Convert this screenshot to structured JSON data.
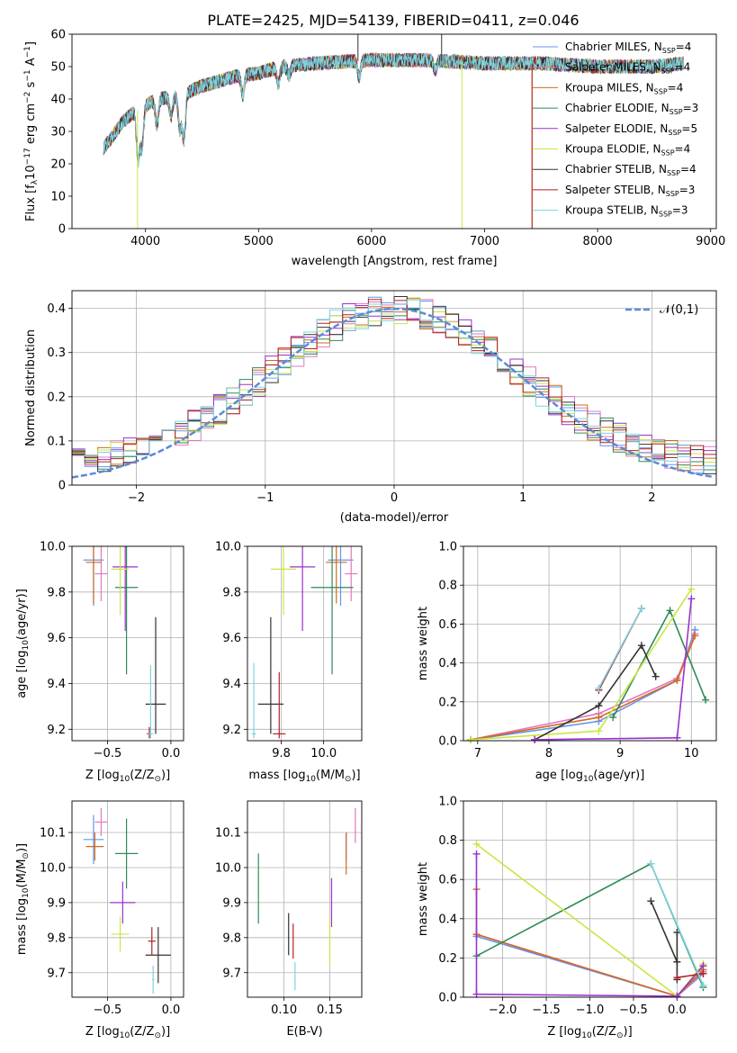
{
  "title": "PLATE=2425, MJD=54139, FIBERID=0411, z=0.046",
  "series_names": [
    "Chabrier MILES",
    "Salpeter MILES",
    "Kroupa MILES",
    "Chabrier ELODIE",
    "Salpeter ELODIE",
    "Kroupa ELODIE",
    "Chabrier STELIB",
    "Salpeter STELIB",
    "Kroupa STELIB"
  ],
  "legend_labels": [
    "Chabrier MILES, N",
    "Salpeter MILES, N",
    "Kroupa MILES, N",
    "Chabrier ELODIE, N",
    "Salpeter ELODIE, N",
    "Kroupa ELODIE, N",
    "Chabrier STELIB, N",
    "Salpeter STELIB, N",
    "Kroupa STELIB, N"
  ],
  "legend_sub": "SSP",
  "legend_nssp": [
    "=4",
    "=4",
    "=4",
    "=3",
    "=5",
    "=4",
    "=4",
    "=3",
    "=3"
  ],
  "colors": [
    "#6495ed",
    "#e377c2",
    "#d2691e",
    "#2e8b57",
    "#9932cc",
    "#c8e645",
    "#333333",
    "#b22222",
    "#7fd3e0"
  ],
  "chart_data": [
    {
      "type": "line",
      "title": "PLATE=2425, MJD=54139, FIBERID=0411, z=0.046",
      "xlabel": "wavelength [Angstrom, rest frame]",
      "ylabel_parts": [
        "Flux [f",
        "λ",
        "10",
        "−17",
        " erg cm",
        "−2",
        " s",
        "−1",
        " A",
        "−1",
        "]"
      ],
      "xlim": [
        3350,
        9050
      ],
      "ylim": [
        0,
        60
      ],
      "xticks": [
        4000,
        5000,
        6000,
        7000,
        8000,
        9000
      ],
      "yticks": [
        0,
        10,
        20,
        30,
        40,
        50,
        60
      ],
      "wavelength_range": [
        3630,
        8760
      ],
      "continuum": [
        [
          3630,
          25
        ],
        [
          3700,
          28
        ],
        [
          3800,
          33
        ],
        [
          3900,
          36
        ],
        [
          4000,
          38
        ],
        [
          4100,
          40
        ],
        [
          4300,
          41
        ],
        [
          4500,
          44
        ],
        [
          4800,
          47
        ],
        [
          5000,
          48
        ],
        [
          5200,
          50
        ],
        [
          5500,
          51
        ],
        [
          6000,
          52
        ],
        [
          6500,
          52
        ],
        [
          7000,
          51
        ],
        [
          7500,
          51
        ],
        [
          8000,
          50
        ],
        [
          8500,
          50
        ],
        [
          8760,
          51
        ]
      ],
      "absorption_lines": [
        [
          3934,
          15
        ],
        [
          3969,
          12
        ],
        [
          4101,
          8
        ],
        [
          4227,
          6
        ],
        [
          4304,
          10
        ],
        [
          4340,
          14
        ],
        [
          4861,
          6
        ],
        [
          5175,
          5
        ],
        [
          5270,
          3
        ],
        [
          5890,
          5
        ],
        [
          6563,
          3
        ]
      ],
      "spikes": [
        [
          3930,
          0,
          "#c8e645"
        ],
        [
          6800,
          0,
          "#c8e645"
        ],
        [
          7420,
          0,
          "#d2691e"
        ],
        [
          7420,
          0,
          "#b22222"
        ],
        [
          5880,
          60,
          "#333333"
        ],
        [
          6620,
          60,
          "#333333"
        ]
      ]
    },
    {
      "type": "histogram",
      "xlabel": "(data-model)/error",
      "ylabel": "Normed distribution",
      "xlim": [
        -2.5,
        2.5
      ],
      "ylim": [
        0,
        0.44
      ],
      "xticks": [
        -2,
        -1,
        0,
        1,
        2
      ],
      "yticks": [
        0.0,
        0.1,
        0.2,
        0.3,
        0.4
      ],
      "bin_width": 0.1,
      "normal_label": "𝒩(0,1)",
      "normal_color": "#5b8bd6"
    },
    {
      "type": "errorbar",
      "xlabel_parts": [
        "Z [log",
        "10",
        "(Z/Z",
        "⊙",
        ")]"
      ],
      "ylabel_parts": [
        "age  [log",
        "10",
        "(age/yr)]"
      ],
      "xlim": [
        -0.78,
        0.1
      ],
      "ylim": [
        9.15,
        10.0
      ],
      "xticks": [
        -0.5,
        0.0
      ],
      "yticks": [
        9.2,
        9.4,
        9.6,
        9.8,
        10.0
      ],
      "points": [
        {
          "x": -0.61,
          "y": 9.94,
          "xerr": 0.08,
          "yerr_lo": 0.2,
          "yerr_hi": 0.06
        },
        {
          "x": -0.55,
          "y": 9.88,
          "xerr": 0.05,
          "yerr_lo": 0.12,
          "yerr_hi": 0.12
        },
        {
          "x": -0.61,
          "y": 9.93,
          "xerr": 0.06,
          "yerr_lo": 0.18,
          "yerr_hi": 0.07
        },
        {
          "x": -0.35,
          "y": 9.82,
          "xerr": 0.09,
          "yerr_lo": 0.38,
          "yerr_hi": 0.18
        },
        {
          "x": -0.36,
          "y": 9.91,
          "xerr": 0.1,
          "yerr_lo": 0.28,
          "yerr_hi": 0.09
        },
        {
          "x": -0.4,
          "y": 9.9,
          "xerr": 0.07,
          "yerr_lo": 0.2,
          "yerr_hi": 0.1
        },
        {
          "x": -0.12,
          "y": 9.31,
          "xerr": 0.08,
          "yerr_lo": 0.13,
          "yerr_hi": 0.38
        },
        {
          "x": -0.17,
          "y": 9.18,
          "xerr": 0.02,
          "yerr_lo": 0.02,
          "yerr_hi": 0.03
        },
        {
          "x": -0.16,
          "y": 9.18,
          "xerr": 0.02,
          "yerr_lo": 0.02,
          "yerr_hi": 0.3
        }
      ]
    },
    {
      "type": "errorbar",
      "xlabel_parts": [
        "mass [log",
        "10",
        "(M/M",
        "⊙",
        ")]"
      ],
      "xlim": [
        9.64,
        10.18
      ],
      "ylim": [
        9.15,
        10.0
      ],
      "xticks": [
        9.8,
        10.0
      ],
      "yticks": [
        9.2,
        9.4,
        9.6,
        9.8,
        10.0
      ],
      "points": [
        {
          "x": 10.08,
          "y": 9.94,
          "xerr": 0.06,
          "yerr_lo": 0.2,
          "yerr_hi": 0.06
        },
        {
          "x": 10.13,
          "y": 9.88,
          "xerr": 0.03,
          "yerr_lo": 0.12,
          "yerr_hi": 0.12
        },
        {
          "x": 10.06,
          "y": 9.93,
          "xerr": 0.05,
          "yerr_lo": 0.18,
          "yerr_hi": 0.07
        },
        {
          "x": 10.04,
          "y": 9.82,
          "xerr": 0.1,
          "yerr_lo": 0.38,
          "yerr_hi": 0.18
        },
        {
          "x": 9.9,
          "y": 9.91,
          "xerr": 0.06,
          "yerr_lo": 0.28,
          "yerr_hi": 0.09
        },
        {
          "x": 9.81,
          "y": 9.9,
          "xerr": 0.06,
          "yerr_lo": 0.2,
          "yerr_hi": 0.1
        },
        {
          "x": 9.75,
          "y": 9.31,
          "xerr": 0.06,
          "yerr_lo": 0.13,
          "yerr_hi": 0.38
        },
        {
          "x": 9.79,
          "y": 9.18,
          "xerr": 0.03,
          "yerr_lo": 0.02,
          "yerr_hi": 0.27
        },
        {
          "x": 9.67,
          "y": 9.18,
          "xerr": 0.01,
          "yerr_lo": 0.02,
          "yerr_hi": 0.31
        }
      ]
    },
    {
      "type": "line",
      "xlabel_parts": [
        "age  [log",
        "10",
        "(age/yr)]"
      ],
      "ylabel": "mass weight",
      "xlim": [
        6.8,
        10.35
      ],
      "ylim": [
        0,
        1.0
      ],
      "xticks": [
        7,
        8,
        9,
        10
      ],
      "yticks": [
        0.0,
        0.2,
        0.4,
        0.6,
        0.8,
        1.0
      ],
      "series": [
        {
          "x": [
            6.9,
            8.7,
            9.8,
            10.05
          ],
          "y": [
            0.005,
            0.1,
            0.31,
            0.57
          ]
        },
        {
          "x": [
            6.9,
            8.7,
            9.8,
            10.05
          ],
          "y": [
            0.005,
            0.14,
            0.32,
            0.55
          ]
        },
        {
          "x": [
            6.9,
            8.7,
            9.8,
            10.05
          ],
          "y": [
            0.005,
            0.12,
            0.31,
            0.54
          ]
        },
        {
          "x": [
            8.9,
            9.7,
            10.2
          ],
          "y": [
            0.12,
            0.67,
            0.21
          ]
        },
        {
          "x": [
            7.8,
            9.8,
            10.0
          ],
          "y": [
            0.005,
            0.015,
            0.73
          ]
        },
        {
          "x": [
            6.9,
            8.7,
            10.0
          ],
          "y": [
            0.005,
            0.05,
            0.78
          ]
        },
        {
          "x": [
            7.8,
            8.7,
            9.3,
            9.5
          ],
          "y": [
            0.005,
            0.18,
            0.49,
            0.33
          ]
        },
        {
          "x": [
            8.7,
            9.3
          ],
          "y": [
            0.26,
            0.68
          ]
        },
        {
          "x": [
            8.7,
            9.3
          ],
          "y": [
            0.27,
            0.68
          ]
        }
      ]
    },
    {
      "type": "errorbar",
      "xlabel_parts": [
        "Z [log",
        "10",
        "(Z/Z",
        "⊙",
        ")]"
      ],
      "ylabel_parts": [
        "mass [log",
        "10",
        "(M/M",
        "⊙",
        ")]"
      ],
      "xlim": [
        -0.78,
        0.1
      ],
      "ylim": [
        9.63,
        10.19
      ],
      "xticks": [
        -0.5,
        0.0
      ],
      "yticks": [
        9.7,
        9.8,
        9.9,
        10.0,
        10.1
      ],
      "points": [
        {
          "x": -0.61,
          "y": 10.08,
          "xerr": 0.08,
          "yerr": 0.07
        },
        {
          "x": -0.55,
          "y": 10.13,
          "xerr": 0.05,
          "yerr": 0.04
        },
        {
          "x": -0.6,
          "y": 10.06,
          "xerr": 0.07,
          "yerr": 0.04
        },
        {
          "x": -0.35,
          "y": 10.04,
          "xerr": 0.09,
          "yerr": 0.1
        },
        {
          "x": -0.38,
          "y": 9.9,
          "xerr": 0.1,
          "yerr": 0.06
        },
        {
          "x": -0.4,
          "y": 9.81,
          "xerr": 0.07,
          "yerr": 0.05
        },
        {
          "x": -0.1,
          "y": 9.75,
          "xerr": 0.1,
          "yerr": 0.08
        },
        {
          "x": -0.15,
          "y": 9.79,
          "xerr": 0.03,
          "yerr": 0.04
        },
        {
          "x": -0.14,
          "y": 9.68,
          "xerr": 0.01,
          "yerr": 0.04
        }
      ]
    },
    {
      "type": "errorbar",
      "xlabel": "E(B-V)",
      "xlim": [
        0.06,
        0.185
      ],
      "ylim": [
        9.63,
        10.19
      ],
      "xticks": [
        0.1,
        0.15
      ],
      "yticks": [
        9.7,
        9.8,
        9.9,
        10.0,
        10.1
      ],
      "points": [
        {
          "x": 0.168,
          "y": 10.06,
          "yerr": 0.04
        },
        {
          "x": 0.178,
          "y": 10.12,
          "yerr": 0.05
        },
        {
          "x": 0.168,
          "y": 10.04,
          "yerr": 0.06
        },
        {
          "x": 0.072,
          "y": 9.94,
          "yerr": 0.1
        },
        {
          "x": 0.152,
          "y": 9.9,
          "yerr": 0.07
        },
        {
          "x": 0.15,
          "y": 9.79,
          "yerr": 0.07
        },
        {
          "x": 0.105,
          "y": 9.81,
          "yerr": 0.06
        },
        {
          "x": 0.11,
          "y": 9.79,
          "yerr": 0.05
        },
        {
          "x": 0.112,
          "y": 9.69,
          "yerr": 0.04
        }
      ]
    },
    {
      "type": "line",
      "xlabel_parts": [
        "Z [log",
        "10",
        "(Z/Z",
        "⊙",
        ")]"
      ],
      "ylabel": "mass weight",
      "xlim": [
        -2.45,
        0.45
      ],
      "ylim": [
        0,
        1.0
      ],
      "xticks": [
        -2.0,
        -1.5,
        -1.0,
        -0.5,
        0.0
      ],
      "yticks": [
        0.0,
        0.2,
        0.4,
        0.6,
        0.8,
        1.0
      ],
      "series": [
        {
          "x": [
            -2.3,
            0.0,
            0.3
          ],
          "y": [
            0.31,
            0.005,
            0.12
          ]
        },
        {
          "x": [
            -2.3,
            0.0,
            0.3
          ],
          "y": [
            0.32,
            0.005,
            0.13
          ]
        },
        {
          "x": [
            -2.3,
            -2.3,
            0.0,
            0.3
          ],
          "y": [
            0.55,
            0.32,
            0.005,
            0.14
          ]
        },
        {
          "x": [
            -2.3,
            -0.3,
            0.3
          ],
          "y": [
            0.21,
            0.68,
            0.05
          ]
        },
        {
          "x": [
            -2.3,
            -2.3,
            0.0,
            0.3
          ],
          "y": [
            0.73,
            0.015,
            0.005,
            0.16
          ]
        },
        {
          "x": [
            -2.3,
            0.0,
            0.3
          ],
          "y": [
            0.78,
            0.005,
            0.17
          ]
        },
        {
          "x": [
            -0.3,
            0.0,
            0.0,
            0.0
          ],
          "y": [
            0.49,
            0.18,
            0.33,
            0.09
          ]
        },
        {
          "x": [
            0.0,
            0.3
          ],
          "y": [
            0.1,
            0.12
          ]
        },
        {
          "x": [
            -0.3,
            0.3
          ],
          "y": [
            0.68,
            0.06
          ]
        }
      ]
    }
  ]
}
